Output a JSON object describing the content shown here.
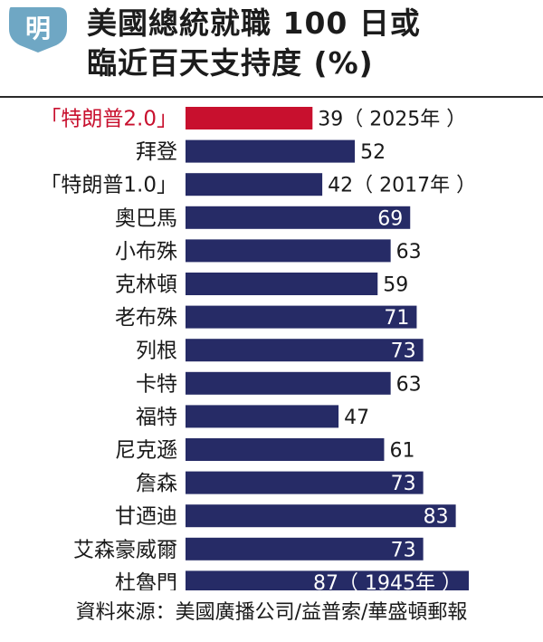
{
  "header": {
    "logo_text": "明",
    "title_line1": "美國總統就職 100 日或",
    "title_line2": "臨近百天支持度 (%)"
  },
  "chart_data": {
    "type": "bar",
    "orientation": "horizontal",
    "categories": [
      "「特朗普2.0」",
      "拜登",
      "「特朗普1.0」",
      "奧巴馬",
      "小布殊",
      "克林頓",
      "老布殊",
      "列根",
      "卡特",
      "福特",
      "尼克遜",
      "詹森",
      "甘迺迪",
      "艾森豪威爾",
      "杜魯門"
    ],
    "values": [
      39,
      52,
      42,
      69,
      63,
      59,
      71,
      73,
      63,
      47,
      61,
      73,
      83,
      73,
      87
    ],
    "value_labels": [
      "39（ 2025年 ）",
      "52",
      "42（ 2017年 ）",
      "69",
      "63",
      "59",
      "71",
      "73",
      "63",
      "47",
      "61",
      "73",
      "83",
      "73",
      "87（ 1945年 ）"
    ],
    "highlight_index": 0,
    "xlim": [
      0,
      87
    ],
    "colors": {
      "bar": "#262b66",
      "highlight": "#c8102e",
      "highlight_label": "#c8102e",
      "label": "#1a1a1a"
    }
  },
  "footer": {
    "source": "資料來源：美國廣播公司/益普索/華盛頓郵報"
  }
}
